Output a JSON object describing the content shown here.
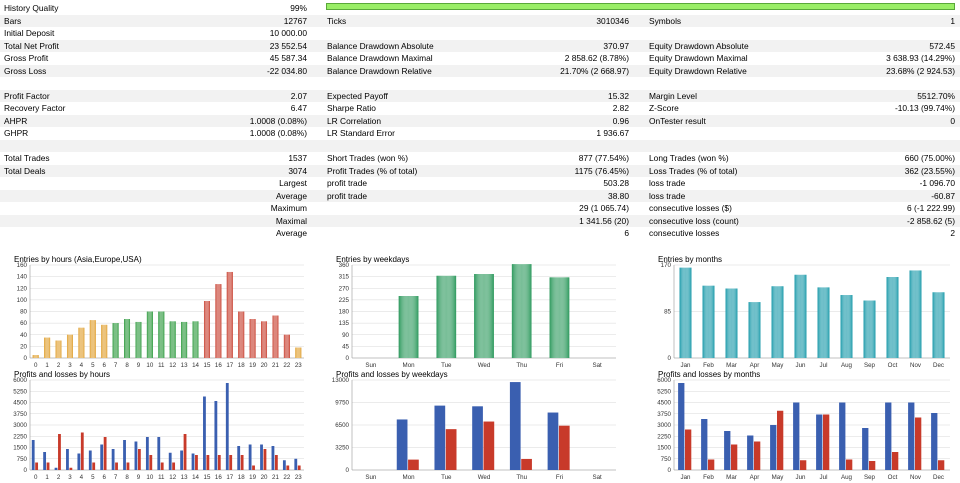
{
  "summary": [
    {
      "y": 2,
      "shade": false,
      "c": [
        [
          "History Quality",
          "99%"
        ],
        [
          "",
          ""
        ],
        [
          "",
          ""
        ]
      ],
      "bar": true
    },
    {
      "y": 14.5,
      "shade": true,
      "c": [
        [
          "Bars",
          "12767"
        ],
        [
          "Ticks",
          "3010346"
        ],
        [
          "Symbols",
          "1"
        ]
      ]
    },
    {
      "y": 27,
      "shade": false,
      "c": [
        [
          "Initial Deposit",
          "10 000.00"
        ],
        [
          "",
          ""
        ],
        [
          "",
          ""
        ]
      ]
    },
    {
      "y": 39.5,
      "shade": true,
      "c": [
        [
          "Total Net Profit",
          "23 552.54"
        ],
        [
          "Balance Drawdown Absolute",
          "370.97"
        ],
        [
          "Equity Drawdown Absolute",
          "572.45"
        ]
      ]
    },
    {
      "y": 52,
      "shade": false,
      "c": [
        [
          "Gross Profit",
          "45 587.34"
        ],
        [
          "Balance Drawdown Maximal",
          "2 858.62 (8.78%)"
        ],
        [
          "Equity Drawdown Maximal",
          "3 638.93 (14.29%)"
        ]
      ]
    },
    {
      "y": 64.5,
      "shade": true,
      "c": [
        [
          "Gross Loss",
          "-22 034.80"
        ],
        [
          "Balance Drawdown Relative",
          "21.70% (2 668.97)"
        ],
        [
          "Equity Drawdown Relative",
          "23.68% (2 924.53)"
        ]
      ]
    },
    {
      "y": 77,
      "shade": false,
      "c": [
        [
          "",
          ""
        ],
        [
          "",
          ""
        ],
        [
          "",
          ""
        ]
      ]
    },
    {
      "y": 89.5,
      "shade": true,
      "c": [
        [
          "Profit Factor",
          "2.07"
        ],
        [
          "Expected Payoff",
          "15.32"
        ],
        [
          "Margin Level",
          "5512.70%"
        ]
      ]
    },
    {
      "y": 102,
      "shade": false,
      "c": [
        [
          "Recovery Factor",
          "6.47"
        ],
        [
          "Sharpe Ratio",
          "2.82"
        ],
        [
          "Z-Score",
          "-10.13 (99.74%)"
        ]
      ]
    },
    {
      "y": 114.5,
      "shade": true,
      "c": [
        [
          "AHPR",
          "1.0008 (0.08%)"
        ],
        [
          "LR Correlation",
          "0.96"
        ],
        [
          "OnTester result",
          "0"
        ]
      ]
    },
    {
      "y": 127,
      "shade": false,
      "c": [
        [
          "GHPR",
          "1.0008 (0.08%)"
        ],
        [
          "LR Standard Error",
          "1 936.67"
        ],
        [
          "",
          ""
        ]
      ]
    },
    {
      "y": 139.5,
      "shade": true,
      "c": [
        [
          "",
          ""
        ],
        [
          "",
          ""
        ],
        [
          "",
          ""
        ]
      ]
    },
    {
      "y": 152,
      "shade": false,
      "c": [
        [
          "Total Trades",
          "1537"
        ],
        [
          "Short Trades (won %)",
          "877 (77.54%)"
        ],
        [
          "Long Trades (won %)",
          "660 (75.00%)"
        ]
      ]
    },
    {
      "y": 164.5,
      "shade": true,
      "c": [
        [
          "Total Deals",
          "3074"
        ],
        [
          "Profit Trades (% of total)",
          "1175 (76.45%)"
        ],
        [
          "Loss Trades (% of total)",
          "362 (23.55%)"
        ]
      ]
    },
    {
      "y": 177,
      "shade": false,
      "r": "Largest",
      "c": [
        [
          "",
          ""
        ],
        [
          "profit trade",
          "503.28"
        ],
        [
          "loss trade",
          "-1 096.70"
        ]
      ]
    },
    {
      "y": 189.5,
      "shade": true,
      "r": "Average",
      "c": [
        [
          "",
          ""
        ],
        [
          "profit trade",
          "38.80"
        ],
        [
          "loss trade",
          "-60.87"
        ]
      ]
    },
    {
      "y": 202,
      "shade": false,
      "r": "Maximum",
      "c": [
        [
          "",
          ""
        ],
        [
          "",
          "29 (1 065.74)"
        ],
        [
          "consecutive losses ($)",
          "6 (-1 222.99)"
        ]
      ]
    },
    {
      "y": 214.5,
      "shade": true,
      "r": "Maximal",
      "c": [
        [
          "",
          ""
        ],
        [
          "",
          "1 341.56 (20)"
        ],
        [
          "consecutive loss (count)",
          "-2 858.62 (5)"
        ]
      ]
    },
    {
      "y": 227,
      "shade": false,
      "r": "Average",
      "c": [
        [
          "",
          ""
        ],
        [
          "",
          "6"
        ],
        [
          "consecutive losses",
          "2"
        ]
      ]
    }
  ],
  "chart_data": [
    {
      "id": "eh",
      "type": "bar",
      "title": "Entries by hours (Asia,Europe,USA)",
      "categories": [
        "0",
        "1",
        "2",
        "3",
        "4",
        "5",
        "6",
        "7",
        "8",
        "9",
        "10",
        "11",
        "12",
        "13",
        "14",
        "15",
        "16",
        "17",
        "18",
        "19",
        "20",
        "21",
        "22",
        "23"
      ],
      "values": [
        5,
        35,
        30,
        40,
        52,
        65,
        57,
        60,
        67,
        62,
        80,
        80,
        63,
        62,
        63,
        98,
        127,
        148,
        80,
        67,
        63,
        73,
        40,
        18
      ],
      "colors": [
        "#e0a030",
        "#e0a030",
        "#e0a030",
        "#e0a030",
        "#e0a030",
        "#e0a030",
        "#e0a030",
        "#2e9a3e",
        "#2e9a3e",
        "#2e9a3e",
        "#2e9a3e",
        "#2e9a3e",
        "#2e9a3e",
        "#2e9a3e",
        "#2e9a3e",
        "#c84030",
        "#c84030",
        "#c84030",
        "#c84030",
        "#c84030",
        "#c84030",
        "#c84030",
        "#c84030",
        "#e0a030"
      ],
      "yticks": [
        "0",
        "20",
        "40",
        "60",
        "80",
        "100",
        "120",
        "140",
        "160"
      ],
      "ylim": [
        0,
        160
      ]
    },
    {
      "id": "ew",
      "type": "bar",
      "title": "Entries by weekdays",
      "categories": [
        "Sun",
        "Mon",
        "Tue",
        "Wed",
        "Thu",
        "Fri",
        "Sat"
      ],
      "values": [
        0,
        240,
        318,
        325,
        363,
        312,
        0
      ],
      "colors": [
        "#2e9a5e",
        "#2e9a5e",
        "#2e9a5e",
        "#2e9a5e",
        "#2e9a5e",
        "#2e9a5e",
        "#2e9a5e"
      ],
      "yticks": [
        "0",
        "45",
        "90",
        "135",
        "180",
        "225",
        "270",
        "315",
        "360"
      ],
      "ylim": [
        0,
        360
      ]
    },
    {
      "id": "em",
      "type": "bar",
      "title": "Entries by months",
      "categories": [
        "Jan",
        "Feb",
        "Mar",
        "Apr",
        "May",
        "Jun",
        "Jul",
        "Aug",
        "Sep",
        "Oct",
        "Nov",
        "Dec"
      ],
      "values": [
        165,
        132,
        127,
        102,
        131,
        152,
        129,
        115,
        105,
        148,
        160,
        120
      ],
      "colors": [
        "#1a9aaa",
        "#1a9aaa",
        "#1a9aaa",
        "#1a9aaa",
        "#1a9aaa",
        "#1a9aaa",
        "#1a9aaa",
        "#1a9aaa",
        "#1a9aaa",
        "#1a9aaa",
        "#1a9aaa",
        "#1a9aaa"
      ],
      "yticks": [
        "0",
        "85",
        "170"
      ],
      "ylim": [
        0,
        170
      ]
    },
    {
      "id": "ph",
      "type": "bar",
      "title": "Profits and losses by hours",
      "categories": [
        "0",
        "1",
        "2",
        "3",
        "4",
        "5",
        "6",
        "7",
        "8",
        "9",
        "10",
        "11",
        "12",
        "13",
        "14",
        "15",
        "16",
        "17",
        "18",
        "19",
        "20",
        "21",
        "22",
        "23"
      ],
      "series": [
        {
          "values": [
            2000,
            1200,
            150,
            1400,
            1100,
            1300,
            1700,
            1400,
            2000,
            1900,
            2200,
            2200,
            1150,
            1300,
            1100,
            4900,
            4600,
            5800,
            1600,
            1700,
            1700,
            1600,
            650,
            750
          ]
        },
        {
          "values": [
            500,
            500,
            2400,
            150,
            2500,
            500,
            2200,
            500,
            500,
            1400,
            1000,
            500,
            500,
            2400,
            1000,
            1000,
            1000,
            1000,
            1000,
            300,
            1400,
            1000,
            300,
            300
          ]
        }
      ],
      "colors": [
        "#3a5fb0",
        "#c83a2a"
      ],
      "yticks": [
        "0",
        "750",
        "1500",
        "2250",
        "3000",
        "3750",
        "4500",
        "5250",
        "6000"
      ],
      "ylim": [
        0,
        6000
      ]
    },
    {
      "id": "pw",
      "type": "bar",
      "title": "Profits and losses by weekdays",
      "categories": [
        "Sun",
        "Mon",
        "Tue",
        "Wed",
        "Thu",
        "Fri",
        "Sat"
      ],
      "series": [
        {
          "values": [
            0,
            7300,
            9300,
            9200,
            12700,
            8300,
            0
          ]
        },
        {
          "values": [
            0,
            1500,
            5900,
            7000,
            1600,
            6400,
            0
          ]
        }
      ],
      "colors": [
        "#3a5fb0",
        "#c83a2a"
      ],
      "yticks": [
        "0",
        "3250",
        "6500",
        "9750",
        "13000"
      ],
      "ylim": [
        0,
        13000
      ]
    },
    {
      "id": "pm",
      "type": "bar",
      "title": "Profits and losses by months",
      "categories": [
        "Jan",
        "Feb",
        "Mar",
        "Apr",
        "May",
        "Jun",
        "Jul",
        "Aug",
        "Sep",
        "Oct",
        "Nov",
        "Dec"
      ],
      "series": [
        {
          "values": [
            5800,
            3400,
            2600,
            2300,
            3000,
            4500,
            3700,
            4500,
            2800,
            4500,
            4500,
            3800
          ]
        },
        {
          "values": [
            2700,
            700,
            1700,
            1900,
            3950,
            650,
            3700,
            700,
            600,
            1200,
            3500,
            650
          ]
        }
      ],
      "colors": [
        "#3a5fb0",
        "#c83a2a"
      ],
      "yticks": [
        "0",
        "750",
        "1500",
        "2250",
        "3000",
        "3750",
        "4500",
        "5250",
        "6000"
      ],
      "ylim": [
        0,
        6000
      ]
    }
  ]
}
